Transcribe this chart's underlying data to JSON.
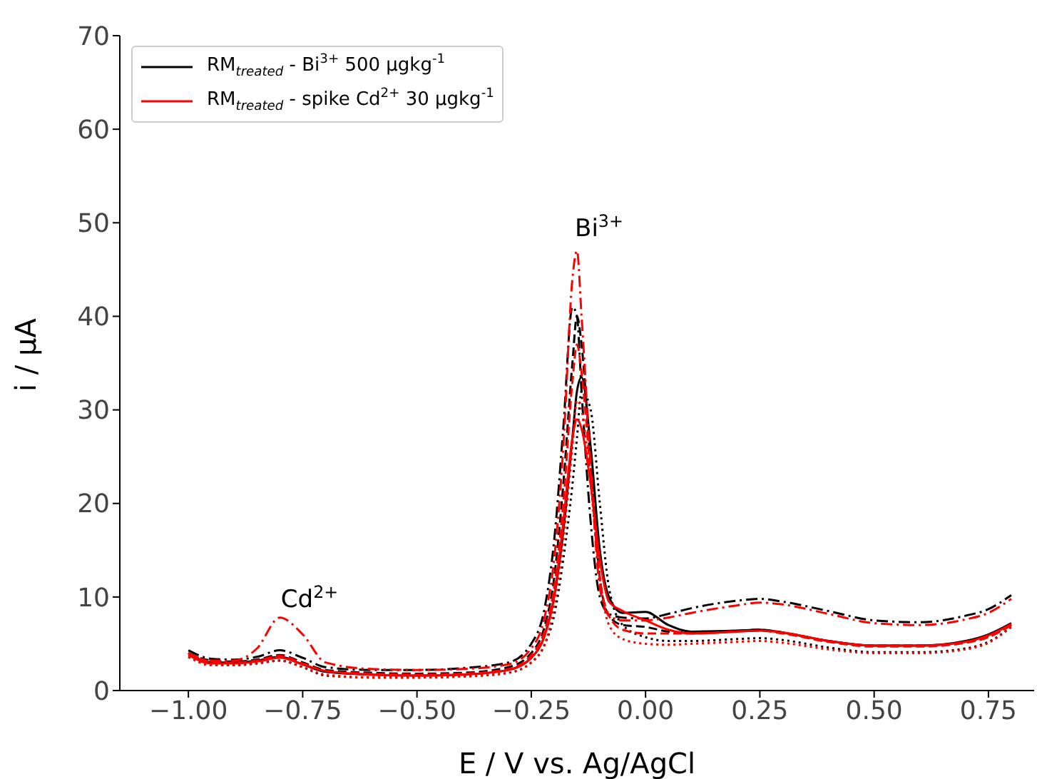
{
  "chart_data": {
    "type": "line",
    "xlabel": "E / V vs. Ag/AgCl",
    "ylabel": "i / μA",
    "x": [
      -1.0,
      -0.95,
      -0.9,
      -0.85,
      -0.8,
      -0.75,
      -0.7,
      -0.6,
      -0.5,
      -0.4,
      -0.3,
      -0.25,
      -0.22,
      -0.2,
      -0.18,
      -0.16,
      -0.15,
      -0.14,
      -0.12,
      -0.1,
      -0.08,
      -0.05,
      0,
      0.05,
      0.1,
      0.2,
      0.25,
      0.3,
      0.4,
      0.5,
      0.6,
      0.7,
      0.75,
      0.8
    ],
    "xlim": [
      -1.15,
      0.85
    ],
    "xticks": [
      {
        "value": -1.0,
        "label": "−1.00"
      },
      {
        "value": -0.75,
        "label": "−0.75"
      },
      {
        "value": -0.5,
        "label": "−0.50"
      },
      {
        "value": -0.25,
        "label": "−0.25"
      },
      {
        "value": 0,
        "label": "0.00"
      },
      {
        "value": 0.25,
        "label": "0.25"
      },
      {
        "value": 0.5,
        "label": "0.50"
      },
      {
        "value": 0.75,
        "label": "0.75"
      }
    ],
    "ylim": [
      0,
      70
    ],
    "yticks": [
      0,
      10,
      20,
      30,
      40,
      50,
      60,
      70
    ],
    "grid": false,
    "legend": "top left",
    "marker": "none",
    "annotations": [
      "Bi$^{3+}$",
      "Cd$^{2+}$"
    ],
    "series": [
      {
        "name": "RM$_{treated}$ - Bi$^{3+}$ 500 μgkg$^{-1}$",
        "color": "#000000",
        "line_style": "solid",
        "values": [
          4.0,
          3.0,
          3.0,
          3.2,
          3.6,
          2.8,
          2.0,
          1.7,
          1.6,
          1.7,
          2.2,
          3.5,
          6,
          10,
          17,
          27,
          32,
          33.5,
          26,
          15,
          10,
          8.3,
          8.4,
          7,
          6.3,
          6.4,
          6.5,
          6.2,
          5.3,
          4.8,
          4.8,
          5.3,
          6,
          7.2
        ]
      },
      {
        "color": "#000000",
        "line_style": "dashed",
        "values": [
          4.0,
          3.2,
          3.1,
          3.3,
          3.8,
          3.0,
          2.2,
          1.9,
          1.8,
          1.9,
          2.5,
          4,
          7,
          12,
          22,
          35,
          40,
          37,
          24,
          12,
          8,
          7,
          6.8,
          6.3,
          6.2,
          6.4,
          6.5,
          6.2,
          5.3,
          4.8,
          4.8,
          5.2,
          5.8,
          7.0
        ]
      },
      {
        "color": "#000000",
        "line_style": "dotted",
        "values": [
          3.6,
          2.8,
          2.7,
          2.9,
          3.2,
          2.5,
          1.6,
          1.4,
          1.4,
          1.5,
          1.9,
          3,
          5,
          8,
          14,
          22,
          27,
          32,
          30,
          20,
          11,
          7,
          5.7,
          5.3,
          5.3,
          5.5,
          5.6,
          5.4,
          4.6,
          4.1,
          4.1,
          4.5,
          5.2,
          6.8
        ]
      },
      {
        "color": "#000000",
        "line_style": "dashdot",
        "values": [
          4.3,
          3.4,
          3.3,
          3.6,
          4.3,
          3.5,
          2.5,
          2.2,
          2.2,
          2.4,
          3,
          5,
          9,
          16,
          28,
          41,
          40,
          32,
          18,
          10,
          8.2,
          7.8,
          7.7,
          8.2,
          8.8,
          9.6,
          9.8,
          9.5,
          8.5,
          7.5,
          7.3,
          8,
          8.7,
          10.2
        ]
      },
      {
        "name": "RM$_{treated}$ - spike Cd$^{2+}$ 30 μgkg$^{-1}$",
        "color": "#ff0000",
        "line_style": "solid",
        "values": [
          3.8,
          2.9,
          2.9,
          3.1,
          3.5,
          2.8,
          2.1,
          1.7,
          1.6,
          1.7,
          2.2,
          3.5,
          6,
          10,
          18,
          27,
          29,
          28,
          22,
          14,
          9.5,
          8.5,
          7.5,
          6.5,
          6.1,
          6.3,
          6.4,
          6.2,
          5.3,
          4.8,
          4.8,
          5.2,
          5.9,
          7.1
        ]
      },
      {
        "color": "#ff0000",
        "line_style": "dashed",
        "values": [
          4.0,
          3.1,
          3.0,
          3.2,
          3.7,
          2.9,
          2.1,
          1.8,
          1.7,
          1.8,
          2.3,
          3.8,
          6.5,
          11,
          20,
          33,
          37,
          34,
          23,
          12,
          8,
          6.5,
          6.1,
          6.1,
          6.1,
          6.3,
          6.4,
          6.1,
          5.2,
          4.7,
          4.7,
          5.1,
          5.7,
          7.0
        ]
      },
      {
        "color": "#ff0000",
        "line_style": "dotted",
        "values": [
          3.6,
          2.7,
          2.7,
          2.9,
          3.2,
          2.5,
          1.7,
          1.4,
          1.4,
          1.5,
          1.9,
          3,
          5,
          9,
          16,
          26,
          31,
          30,
          22,
          12,
          7,
          5.5,
          5.0,
          4.9,
          5.0,
          5.2,
          5.3,
          5.1,
          4.4,
          4.0,
          4.0,
          4.4,
          5.1,
          6.8
        ]
      },
      {
        "color": "#ff0000",
        "line_style": "dashdot",
        "values": [
          4.0,
          3.2,
          3.2,
          4.5,
          7.8,
          6.0,
          3.0,
          2.3,
          2.2,
          2.3,
          2.8,
          4.5,
          8,
          14,
          26,
          44,
          47,
          40,
          24,
          11,
          8,
          7.5,
          7.5,
          7.8,
          8.3,
          9.1,
          9.4,
          9.2,
          8.2,
          7.2,
          7.0,
          7.6,
          8.3,
          9.8
        ]
      }
    ]
  }
}
